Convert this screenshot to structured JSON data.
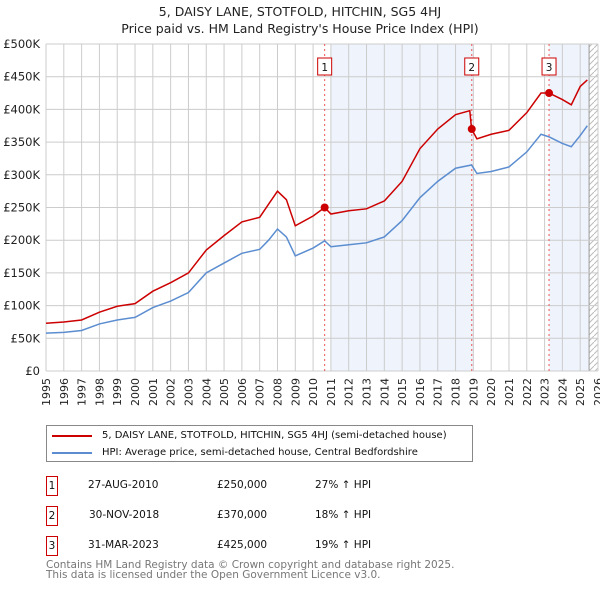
{
  "title": "5, DAISY LANE, STOTFOLD, HITCHIN, SG5 4HJ",
  "subtitle": "Price paid vs. HM Land Registry's House Price Index (HPI)",
  "chart_data": {
    "type": "line",
    "title": "5, DAISY LANE, STOTFOLD, HITCHIN, SG5 4HJ",
    "subtitle": "Price paid vs. HM Land Registry's House Price Index (HPI)",
    "xlim": [
      1995,
      2026
    ],
    "ylim": [
      0,
      500000
    ],
    "yticks": [
      {
        "v": 0,
        "label": "£0"
      },
      {
        "v": 50000,
        "label": "£50K"
      },
      {
        "v": 100000,
        "label": "£100K"
      },
      {
        "v": 150000,
        "label": "£150K"
      },
      {
        "v": 200000,
        "label": "£200K"
      },
      {
        "v": 250000,
        "label": "£250K"
      },
      {
        "v": 300000,
        "label": "£300K"
      },
      {
        "v": 350000,
        "label": "£350K"
      },
      {
        "v": 400000,
        "label": "£400K"
      },
      {
        "v": 450000,
        "label": "£450K"
      },
      {
        "v": 500000,
        "label": "£500K"
      }
    ],
    "xticks": [
      "1995",
      "1996",
      "1997",
      "1998",
      "1999",
      "2000",
      "2001",
      "2002",
      "2003",
      "2004",
      "2005",
      "2006",
      "2007",
      "2008",
      "2009",
      "2010",
      "2011",
      "2012",
      "2013",
      "2014",
      "2015",
      "2016",
      "2017",
      "2018",
      "2019",
      "2020",
      "2021",
      "2022",
      "2023",
      "2024",
      "2025",
      "2026"
    ],
    "shaded_ranges": [
      [
        2011.0,
        2019.0
      ],
      [
        2023.25,
        2025.5
      ]
    ],
    "hatched_from": 2025.5,
    "grid": true,
    "series": [
      {
        "name": "5, DAISY LANE, STOTFOLD, HITCHIN, SG5 4HJ (semi-detached house)",
        "color": "#cc0000",
        "x": [
          1995,
          1996,
          1997,
          1998,
          1999,
          2000,
          2001,
          2002,
          2003,
          2004,
          2005,
          2006,
          2007,
          2007.5,
          2008,
          2008.5,
          2009,
          2010,
          2010.65,
          2011,
          2012,
          2013,
          2014,
          2015,
          2016,
          2017,
          2018,
          2018.8,
          2018.9,
          2019.2,
          2020,
          2021,
          2022,
          2022.8,
          2023.25,
          2024,
          2024.5,
          2025,
          2025.4
        ],
        "y": [
          73000,
          75000,
          78000,
          90000,
          99000,
          103000,
          122000,
          135000,
          150000,
          185000,
          207000,
          228000,
          235000,
          255000,
          275000,
          262000,
          222000,
          237000,
          250000,
          240000,
          245000,
          248000,
          260000,
          290000,
          340000,
          370000,
          392000,
          398000,
          370000,
          355000,
          362000,
          368000,
          395000,
          425000,
          425000,
          415000,
          407000,
          435000,
          445000
        ]
      },
      {
        "name": "HPI: Average price, semi-detached house, Central Bedfordshire",
        "color": "#5b8dd0",
        "x": [
          1995,
          1996,
          1997,
          1998,
          1999,
          2000,
          2001,
          2002,
          2003,
          2004,
          2005,
          2006,
          2007,
          2007.5,
          2008,
          2008.5,
          2009,
          2010,
          2010.65,
          2011,
          2012,
          2013,
          2014,
          2015,
          2016,
          2017,
          2018,
          2018.9,
          2019.2,
          2020,
          2021,
          2022,
          2022.8,
          2023.25,
          2024,
          2024.5,
          2025,
          2025.4
        ],
        "y": [
          58000,
          59000,
          62000,
          72000,
          78000,
          82000,
          97000,
          107000,
          120000,
          150000,
          165000,
          180000,
          186000,
          200000,
          217000,
          205000,
          176000,
          188000,
          199000,
          190000,
          193000,
          196000,
          205000,
          230000,
          265000,
          290000,
          310000,
          315000,
          302000,
          305000,
          312000,
          335000,
          362000,
          358000,
          348000,
          343000,
          360000,
          375000
        ]
      }
    ],
    "sales": [
      {
        "label": "1",
        "x": 2010.65,
        "y": 250000
      },
      {
        "label": "2",
        "x": 2018.91,
        "y": 370000
      },
      {
        "label": "3",
        "x": 2023.25,
        "y": 425000
      }
    ]
  },
  "legend": [
    {
      "label": "5, DAISY LANE, STOTFOLD, HITCHIN, SG5 4HJ (semi-detached house)",
      "color": "#cc0000"
    },
    {
      "label": "HPI: Average price, semi-detached house, Central Bedfordshire",
      "color": "#5b8dd0"
    }
  ],
  "transactions": [
    {
      "num": "1",
      "date": "27-AUG-2010",
      "price": "£250,000",
      "hpi": "27% ↑ HPI"
    },
    {
      "num": "2",
      "date": "30-NOV-2018",
      "price": "£370,000",
      "hpi": "18% ↑ HPI"
    },
    {
      "num": "3",
      "date": "31-MAR-2023",
      "price": "£425,000",
      "hpi": "19% ↑ HPI"
    }
  ],
  "footer": {
    "line1": "Contains HM Land Registry data © Crown copyright and database right 2025.",
    "line2": "This data is licensed under the Open Government Licence v3.0."
  }
}
